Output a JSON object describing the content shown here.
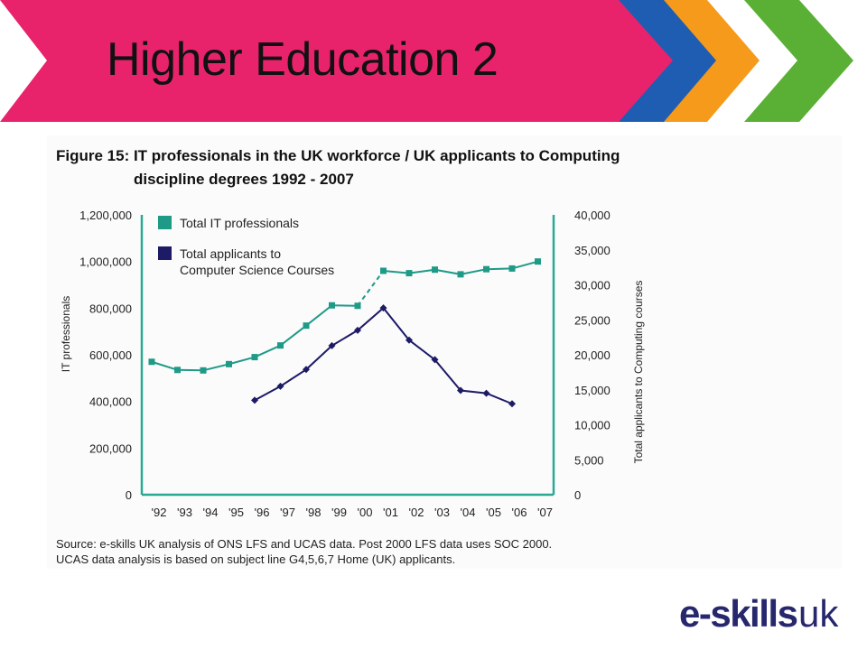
{
  "slide": {
    "title": "Higher Education 2"
  },
  "figure": {
    "title_line1": "Figure 15: IT professionals in the UK workforce / UK applicants to Computing",
    "title_line2": "discipline degrees 1992 - 2007",
    "source_line1": "Source: e-skills UK analysis of ONS LFS and UCAS data. Post 2000 LFS data uses SOC 2000.",
    "source_line2": "UCAS data analysis is based on subject line G4,5,6,7 Home (UK) applicants."
  },
  "logo": {
    "text_main": "e-skills",
    "text_uk": "uk"
  },
  "colors": {
    "banner_pink": "#e8236c",
    "chevron_blue": "#1f5db3",
    "chevron_orange": "#f59a1b",
    "chevron_green": "#5ab035",
    "it_series": "#1e9a87",
    "applicants_series": "#1d1a66",
    "axis": "#2aa894",
    "logo_navy": "#27276e"
  },
  "chart_data": {
    "type": "line",
    "categories": [
      "'92",
      "'93",
      "'94",
      "'95",
      "'96",
      "'97",
      "'98",
      "'99",
      "'00",
      "'01",
      "'02",
      "'03",
      "'04",
      "'05",
      "'06",
      "'07"
    ],
    "ylabel_left": "IT professionals",
    "ylabel_right": "Total applicants to Computing courses",
    "ylim_left": [
      0,
      1200000
    ],
    "ylim_right": [
      0,
      40000
    ],
    "yticks_left": [
      "0",
      "200,000",
      "400,000",
      "600,000",
      "800,000",
      "1,000,000",
      "1,200,000"
    ],
    "yticks_right": [
      "0",
      "5,000",
      "10,000",
      "15,000",
      "20,000",
      "25,000",
      "30,000",
      "35,000",
      "40,000"
    ],
    "legend_placement": "top-left",
    "grid": false,
    "series": [
      {
        "name": "Total IT professionals",
        "axis": "left",
        "marker": "square",
        "dashed_segment_after_index": 8,
        "values": [
          570000,
          535000,
          533000,
          560000,
          590000,
          640000,
          725000,
          812000,
          810000,
          960000,
          950000,
          965000,
          945000,
          967000,
          970000,
          1000000
        ]
      },
      {
        "name": "Total applicants to Computer Science Courses",
        "axis": "right",
        "marker": "diamond",
        "values": [
          null,
          null,
          null,
          null,
          13500,
          15500,
          17900,
          21300,
          23500,
          26700,
          22100,
          19300,
          14900,
          14500,
          13000,
          null
        ]
      }
    ]
  }
}
